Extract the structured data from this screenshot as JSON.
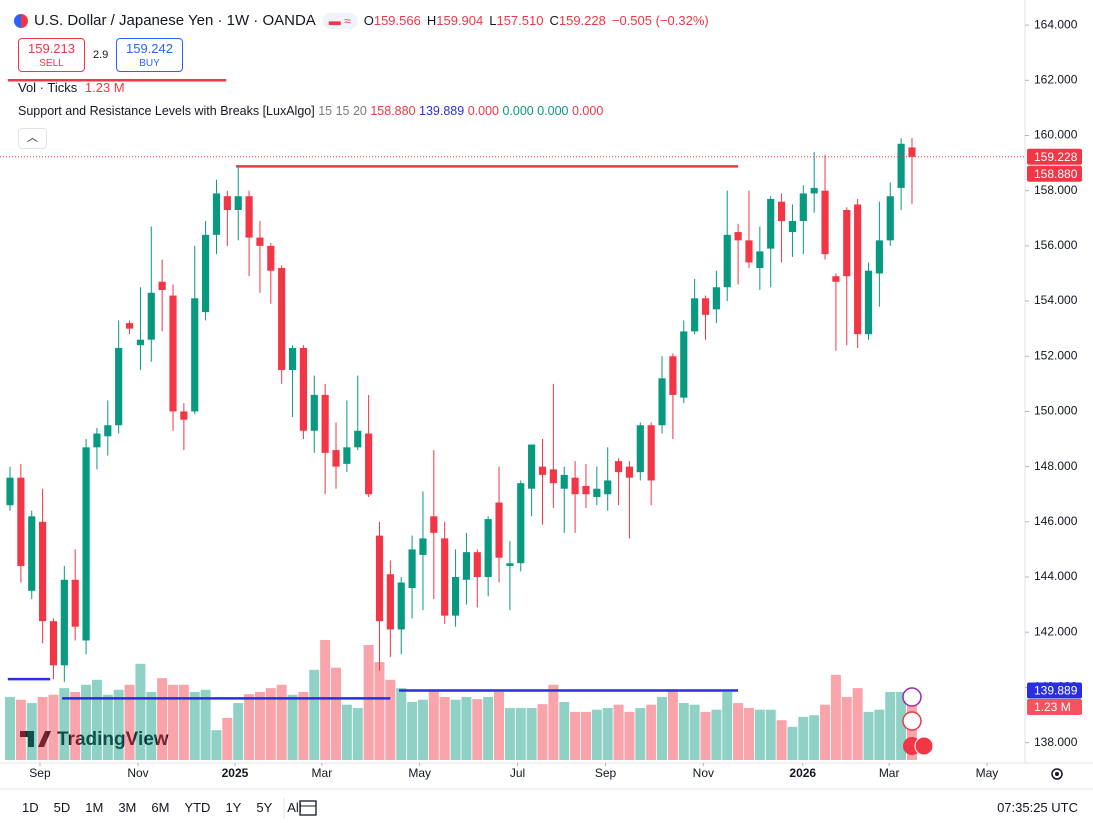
{
  "header": {
    "title": "U.S. Dollar / Japanese Yen · 1W · OANDA",
    "ohlc": [
      {
        "key": "O",
        "value": "159.566"
      },
      {
        "key": "H",
        "value": "159.904"
      },
      {
        "key": "L",
        "value": "157.510"
      },
      {
        "key": "C",
        "value": "159.228"
      }
    ],
    "change": "−0.505 (−0.32%)",
    "sell_price": "159.213",
    "sell_label": "SELL",
    "spread": "2.9",
    "buy_price": "159.242",
    "buy_label": "BUY",
    "volume_title": "Vol · Ticks",
    "volume_label": "1.23 M",
    "indicator": {
      "name": "Support and Resistance Levels with Breaks [LuxAlgo]",
      "params": "15 15 20",
      "outputs": [
        "0.000",
        "0.000",
        "0.000",
        "0.000"
      ]
    }
  },
  "chart_data": {
    "type": "candlestick",
    "up_color": "#089981",
    "down_color": "#f23645",
    "grid": false,
    "xlim": [
      -0.92,
      93.4
    ],
    "ylim": [
      137.26,
      164.91
    ],
    "xticks": [
      {
        "value": 2.76,
        "label": "Sep"
      },
      {
        "value": 11.78,
        "label": "Nov"
      },
      {
        "value": 20.7,
        "label": "2025"
      },
      {
        "value": 28.7,
        "label": "Mar"
      },
      {
        "value": 37.7,
        "label": "May"
      },
      {
        "value": 46.7,
        "label": "Jul"
      },
      {
        "value": 54.8,
        "label": "Sep"
      },
      {
        "value": 63.8,
        "label": "Nov"
      },
      {
        "value": 72.95,
        "label": "2026"
      },
      {
        "value": 80.9,
        "label": "Mar"
      },
      {
        "value": 89.9,
        "label": "May"
      }
    ],
    "yticks": [
      {
        "value": 138,
        "label": "138.000"
      },
      {
        "value": 140,
        "label": "140.000"
      },
      {
        "value": 142,
        "label": "142.000"
      },
      {
        "value": 144,
        "label": "144.000"
      },
      {
        "value": 146,
        "label": "146.000"
      },
      {
        "value": 148,
        "label": "148.000"
      },
      {
        "value": 150,
        "label": "150.000"
      },
      {
        "value": 152,
        "label": "152.000"
      },
      {
        "value": 154,
        "label": "154.000"
      },
      {
        "value": 156,
        "label": "156.000"
      },
      {
        "value": 158,
        "label": "158.000"
      },
      {
        "value": 160,
        "label": "160.000"
      },
      {
        "value": 162,
        "label": "162.000"
      },
      {
        "value": 164,
        "label": "164.000"
      }
    ],
    "open": [
      146.6,
      147.6,
      143.5,
      146.0,
      142.4,
      140.8,
      143.9,
      141.7,
      148.7,
      149.1,
      149.5,
      153.2,
      152.4,
      152.6,
      154.7,
      154.2,
      150.0,
      150.0,
      153.6,
      156.4,
      157.8,
      157.3,
      157.8,
      156.3,
      156.0,
      155.2,
      151.5,
      152.3,
      149.3,
      150.6,
      148.6,
      148.1,
      148.7,
      149.2,
      145.5,
      144.1,
      142.1,
      143.6,
      144.8,
      146.2,
      145.4,
      142.6,
      143.9,
      144.9,
      144.0,
      146.7,
      144.4,
      144.5,
      147.2,
      148.0,
      147.9,
      147.2,
      147.6,
      147.3,
      146.9,
      147.0,
      148.2,
      148.0,
      147.8,
      149.5,
      149.5,
      152.0,
      150.5,
      152.9,
      154.1,
      153.7,
      154.5,
      156.5,
      156.2,
      155.2,
      155.9,
      157.6,
      156.5,
      156.9,
      157.9,
      158.0,
      154.9,
      157.3,
      157.5,
      152.8,
      155.0,
      156.2,
      158.1,
      159.566
    ],
    "high": [
      148.0,
      148.1,
      146.4,
      147.2,
      142.5,
      144.4,
      145.0,
      149.0,
      149.4,
      150.4,
      153.3,
      153.3,
      154.5,
      156.7,
      155.5,
      154.6,
      150.3,
      156.0,
      156.9,
      158.4,
      158.0,
      158.9,
      158.0,
      156.9,
      156.1,
      155.3,
      152.4,
      152.4,
      151.3,
      151.0,
      149.6,
      150.4,
      151.3,
      150.6,
      146.0,
      144.6,
      144.0,
      145.5,
      147.1,
      148.6,
      146.0,
      145.0,
      145.6,
      145.0,
      146.2,
      148.0,
      145.3,
      147.5,
      148.8,
      149.0,
      151.0,
      148.0,
      148.2,
      148.1,
      148.0,
      148.7,
      148.3,
      148.2,
      149.6,
      149.6,
      152.0,
      152.1,
      153.3,
      154.8,
      154.2,
      155.1,
      158.0,
      156.8,
      158.0,
      156.7,
      157.8,
      157.9,
      157.5,
      158.2,
      159.4,
      159.3,
      155.0,
      157.4,
      157.7,
      155.4,
      157.6,
      158.3,
      159.9,
      159.904
    ],
    "low": [
      146.4,
      143.8,
      143.2,
      141.6,
      140.3,
      140.2,
      141.7,
      141.2,
      147.9,
      148.4,
      149.2,
      152.8,
      151.5,
      151.8,
      152.9,
      149.3,
      148.6,
      149.9,
      153.3,
      155.7,
      156.0,
      156.2,
      154.9,
      154.3,
      153.9,
      151.0,
      149.8,
      149.0,
      148.5,
      147.0,
      147.2,
      147.8,
      148.6,
      146.9,
      140.6,
      141.1,
      141.2,
      142.5,
      142.8,
      143.2,
      142.3,
      142.2,
      143.0,
      142.9,
      143.3,
      143.8,
      142.8,
      144.2,
      146.2,
      145.9,
      146.5,
      145.6,
      145.6,
      146.5,
      146.6,
      146.4,
      146.6,
      145.4,
      147.5,
      146.6,
      149.2,
      149.0,
      150.3,
      152.8,
      152.6,
      153.2,
      154.0,
      154.6,
      155.2,
      154.4,
      154.5,
      155.4,
      155.6,
      155.7,
      157.2,
      155.5,
      152.2,
      152.4,
      152.3,
      152.6,
      153.8,
      156.0,
      157.3,
      157.51
    ],
    "close": [
      147.6,
      144.4,
      146.2,
      142.4,
      140.8,
      143.9,
      142.2,
      148.7,
      149.2,
      149.5,
      152.3,
      153.0,
      152.6,
      154.3,
      154.4,
      150.0,
      149.7,
      154.1,
      156.4,
      157.9,
      157.3,
      157.8,
      156.3,
      156.0,
      155.1,
      151.5,
      152.3,
      149.3,
      150.6,
      148.5,
      148.0,
      148.7,
      149.3,
      147.0,
      142.4,
      142.1,
      143.8,
      145.0,
      145.4,
      145.6,
      142.6,
      144.0,
      144.9,
      144.0,
      146.1,
      144.7,
      144.5,
      147.4,
      148.8,
      147.7,
      147.4,
      147.7,
      147.0,
      147.0,
      147.2,
      147.5,
      147.8,
      147.6,
      149.5,
      147.5,
      151.2,
      150.6,
      152.9,
      154.1,
      153.5,
      154.5,
      156.4,
      156.2,
      155.4,
      155.8,
      157.7,
      156.9,
      156.9,
      157.9,
      158.1,
      155.7,
      154.7,
      154.9,
      152.8,
      155.1,
      156.2,
      157.8,
      159.7,
      159.228
    ],
    "volume": [
      1.14,
      1.09,
      1.03,
      1.14,
      1.18,
      1.3,
      1.23,
      1.36,
      1.45,
      1.18,
      1.27,
      1.36,
      1.74,
      1.23,
      1.48,
      1.36,
      1.36,
      1.23,
      1.27,
      0.54,
      0.76,
      1.03,
      1.19,
      1.23,
      1.3,
      1.36,
      1.18,
      1.23,
      1.63,
      2.17,
      1.67,
      1.0,
      0.94,
      2.08,
      1.77,
      1.45,
      1.3,
      1.05,
      1.09,
      1.27,
      1.14,
      1.09,
      1.14,
      1.1,
      1.14,
      1.23,
      0.94,
      0.94,
      0.94,
      1.01,
      1.36,
      1.05,
      0.87,
      0.87,
      0.91,
      0.94,
      1.0,
      0.87,
      0.94,
      1.0,
      1.14,
      1.27,
      1.03,
      1.0,
      0.87,
      0.91,
      1.23,
      1.03,
      0.94,
      0.91,
      0.91,
      0.72,
      0.6,
      0.78,
      0.81,
      1.0,
      1.54,
      1.14,
      1.3,
      0.87,
      0.91,
      1.23,
      1.23,
      1.23
    ],
    "levels": [
      {
        "value": 158.88,
        "label": "158.880",
        "color": "#f23645",
        "from": 20.8,
        "to": 67,
        "tag": true
      },
      {
        "value": 139.889,
        "color": "#2a2ee0",
        "from": 35.8,
        "to": 67,
        "tag": true
      },
      {
        "value": 162.0,
        "color": "#f23645",
        "from": -0.2,
        "to": 19.9
      },
      {
        "value": 140.3,
        "color": "#2a2ee0",
        "from": -0.2,
        "to": 3.7
      },
      {
        "value": 139.6,
        "color": "#2a2ee0",
        "from": 4.8,
        "to": 35
      }
    ]
  },
  "toolbar": {
    "ranges": [
      "1D",
      "5D",
      "1M",
      "3M",
      "6M",
      "YTD",
      "1Y",
      "5Y",
      "All"
    ],
    "time": "07:35:25 UTC"
  },
  "watermark": "TradingView"
}
